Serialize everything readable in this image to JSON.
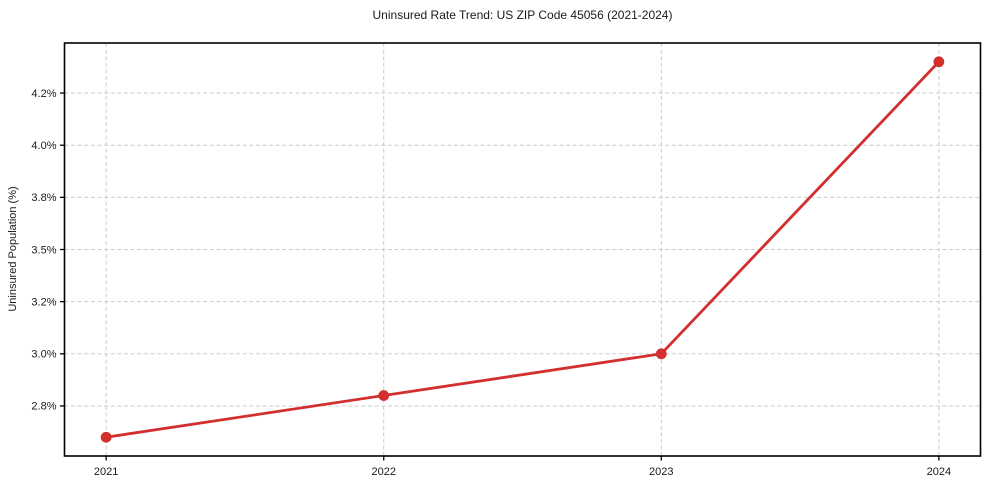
{
  "chart_data": {
    "type": "line",
    "title": "Uninsured Rate Trend: US ZIP Code 45056 (2021-2024)",
    "xlabel": "",
    "ylabel": "Uninsured Population (%)",
    "x": [
      2021,
      2022,
      2023,
      2024
    ],
    "values": [
      2.6,
      2.8,
      3.0,
      4.4
    ],
    "xtick_values": [
      2021,
      2022,
      2023,
      2024
    ],
    "xtick_labels": [
      "2021",
      "2022",
      "2023",
      "2024"
    ],
    "ytick_values": [
      2.75,
      3.0,
      3.25,
      3.5,
      3.75,
      4.0,
      4.25
    ],
    "ytick_labels": [
      "2.8%",
      "3.0%",
      "3.2%",
      "3.5%",
      "3.8%",
      "4.0%",
      "4.2%"
    ],
    "xlim": [
      2020.85,
      2024.15
    ],
    "ylim": [
      2.51,
      4.49
    ],
    "grid": true,
    "grid_style": "dashed",
    "legend_position": "none",
    "colors": {
      "line": "#d32f2f",
      "marker": "#d32f2f",
      "grid": "#cccccc",
      "spine": "#000000",
      "text": "#1a1a1a",
      "background": "#ffffff"
    }
  }
}
